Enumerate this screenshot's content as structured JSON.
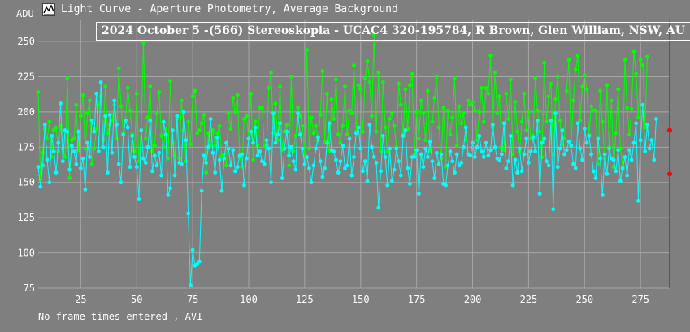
{
  "window": {
    "title": "Light Curve - Aperture Photometry, Average Background",
    "icon": "light-curve-app-icon"
  },
  "status": {
    "text": "No frame times entered , AVI"
  },
  "colors": {
    "background": "#7f7f7f",
    "grid": "#a6a6a6",
    "series_target": "#00ff00",
    "series_comparison": "#00ffff",
    "cursor": "#ff0000",
    "text": "#ffffff"
  },
  "chart_data": {
    "type": "line",
    "title": "2024 October 5 -(566) Stereoskopia - UCAC4 320-195784, R Brown, Glen William, NSW, AU",
    "ylabel": "ADU",
    "xlabel": "",
    "xlim": [
      6,
      288
    ],
    "ylim": [
      75,
      265
    ],
    "xticks": [
      25,
      50,
      75,
      100,
      125,
      150,
      175,
      200,
      225,
      250,
      275
    ],
    "yticks": [
      75,
      100,
      125,
      150,
      175,
      200,
      225,
      250
    ],
    "grid": true,
    "legend": "none",
    "cursor_x": 288,
    "cursor_markers": [
      187,
      156
    ],
    "series": [
      {
        "color": "#00ff00",
        "x_start": 6,
        "x_step": 1,
        "values": [
          214,
          152,
          171,
          188,
          181,
          193,
          168,
          187,
          189,
          172,
          190,
          174,
          168,
          224,
          153,
          180,
          181,
          205,
          173,
          197,
          212,
          174,
          199,
          208,
          163,
          174,
          188,
          205,
          211,
          180,
          218,
          185,
          191,
          194,
          205,
          181,
          231,
          204,
          185,
          194,
          217,
          201,
          184,
          172,
          213,
          165,
          187,
          249,
          181,
          196,
          218,
          172,
          176,
          199,
          214,
          183,
          175,
          188,
          167,
          222,
          178,
          169,
          195,
          167,
          208,
          187,
          165,
          193,
          177,
          211,
          215,
          185,
          187,
          192,
          198,
          157,
          185,
          176,
          187,
          176,
          185,
          190,
          169,
          170,
          162,
          199,
          188,
          210,
          200,
          212,
          168,
          161,
          195,
          197,
          181,
          213,
          166,
          193,
          176,
          203,
          203,
          176,
          175,
          217,
          228,
          185,
          206,
          180,
          218,
          173,
          186,
          191,
          162,
          225,
          172,
          183,
          203,
          197,
          190,
          170,
          244,
          174,
          196,
          185,
          190,
          180,
          198,
          229,
          179,
          213,
          172,
          209,
          195,
          223,
          184,
          178,
          190,
          218,
          184,
          201,
          199,
          233,
          186,
          219,
          216,
          186,
          224,
          236,
          221,
          197,
          255,
          186,
          228,
          172,
          221,
          189,
          172,
          195,
          199,
          190,
          175,
          220,
          205,
          184,
          216,
          188,
          219,
          227,
          170,
          200,
          181,
          208,
          199,
          180,
          215,
          172,
          193,
          210,
          225,
          189,
          167,
          203,
          161,
          201,
          184,
          196,
          224,
          176,
          204,
          192,
          199,
          180,
          208,
          205,
          207,
          201,
          180,
          200,
          217,
          193,
          217,
          213,
          240,
          189,
          228,
          199,
          211,
          175,
          173,
          213,
          195,
          223,
          170,
          207,
          186,
          172,
          193,
          213,
          187,
          200,
          181,
          183,
          224,
          201,
          186,
          168,
          235,
          193,
          211,
          220,
          170,
          209,
          225,
          194,
          177,
          181,
          215,
          237,
          176,
          208,
          230,
          240,
          194,
          218,
          226,
          216,
          184,
          204,
          201,
          201,
          163,
          215,
          193,
          167,
          219,
          175,
          208,
          161,
          185,
          216,
          174,
          161,
          237,
          203,
          184,
          202,
          243,
          227,
          196,
          237,
          233,
          189,
          239
        ]
      },
      {
        "color": "#00ffff",
        "x_start": 6,
        "x_step": 1,
        "values": [
          161,
          147,
          162,
          191,
          166,
          150,
          183,
          172,
          157,
          178,
          206,
          165,
          187,
          186,
          159,
          176,
          172,
          163,
          186,
          160,
          167,
          145,
          178,
          168,
          194,
          186,
          213,
          172,
          221,
          175,
          197,
          157,
          198,
          171,
          208,
          191,
          163,
          150,
          184,
          194,
          189,
          161,
          183,
          168,
          161,
          138,
          187,
          167,
          164,
          175,
          194,
          158,
          169,
          162,
          171,
          155,
          193,
          184,
          141,
          146,
          187,
          155,
          197,
          164,
          163,
          200,
          180,
          128,
          77,
          102,
          91,
          92,
          94,
          144,
          169,
          164,
          175,
          195,
          171,
          157,
          182,
          166,
          144,
          167,
          178,
          174,
          162,
          173,
          158,
          161,
          169,
          170,
          148,
          167,
          181,
          186,
          178,
          189,
          169,
          172,
          165,
          163,
          180,
          174,
          150,
          199,
          178,
          184,
          192,
          153,
          174,
          186,
          169,
          175,
          165,
          159,
          199,
          184,
          174,
          163,
          168,
          160,
          150,
          162,
          174,
          182,
          165,
          154,
          160,
          178,
          192,
          173,
          172,
          166,
          157,
          165,
          176,
          160,
          162,
          181,
          155,
          168,
          185,
          189,
          174,
          158,
          165,
          151,
          191,
          175,
          168,
          164,
          132,
          158,
          183,
          168,
          148,
          174,
          151,
          159,
          174,
          165,
          155,
          183,
          187,
          160,
          149,
          168,
          168,
          173,
          142,
          170,
          161,
          174,
          168,
          179,
          165,
          153,
          171,
          163,
          170,
          149,
          148,
          162,
          172,
          165,
          157,
          170,
          162,
          164,
          175,
          189,
          170,
          169,
          178,
          168,
          175,
          183,
          172,
          168,
          178,
          169,
          173,
          191,
          175,
          167,
          166,
          170,
          192,
          160,
          165,
          183,
          148,
          166,
          157,
          174,
          158,
          170,
          181,
          164,
          172,
          182,
          172,
          194,
          142,
          178,
          181,
          165,
          162,
          194,
          131,
          199,
          161,
          174,
          187,
          170,
          173,
          179,
          176,
          163,
          160,
          192,
          174,
          166,
          188,
          178,
          183,
          170,
          158,
          153,
          181,
          167,
          141,
          170,
          156,
          174,
          167,
          166,
          158,
          173,
          151,
          160,
          168,
          155,
          173,
          166,
          178,
          192,
          137,
          180,
          205,
          172,
          191,
          174,
          180,
          166,
          195
        ]
      }
    ]
  }
}
